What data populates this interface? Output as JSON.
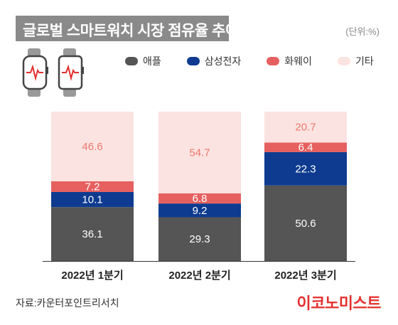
{
  "title": "글로벌 스마트워치 시장 점유율 추이",
  "unit": "(단위:%)",
  "source": "자료:카운터포인트리서치",
  "brand": "이코노미스트",
  "colors": {
    "title_bg": "#8a8a8a",
    "apple": "#555555",
    "samsung": "#0e3b8f",
    "huawei": "#e5605f",
    "other": "#fbe3e1",
    "brand": "#e3302f"
  },
  "icons": [
    "smartwatch-icon",
    "smartwatch-icon"
  ],
  "chart_data": {
    "type": "bar",
    "stacked": true,
    "categories": [
      "2022년 1분기",
      "2022년 2분기",
      "2022년 3분기"
    ],
    "series": [
      {
        "name": "애플",
        "color": "#555555",
        "label_color": "#ffffff",
        "values": [
          36.1,
          29.3,
          50.6
        ]
      },
      {
        "name": "삼성전자",
        "color": "#0e3b8f",
        "label_color": "#ffffff",
        "values": [
          10.1,
          9.2,
          22.3
        ]
      },
      {
        "name": "화웨이",
        "color": "#e5605f",
        "label_color": "#ffffff",
        "values": [
          7.2,
          6.8,
          6.4
        ]
      },
      {
        "name": "기타",
        "color": "#fbe3e1",
        "label_color": "#ee7a6c",
        "values": [
          46.6,
          54.7,
          20.7
        ]
      }
    ],
    "ylim": [
      0,
      100
    ],
    "legend": "top-right",
    "grid": false
  }
}
